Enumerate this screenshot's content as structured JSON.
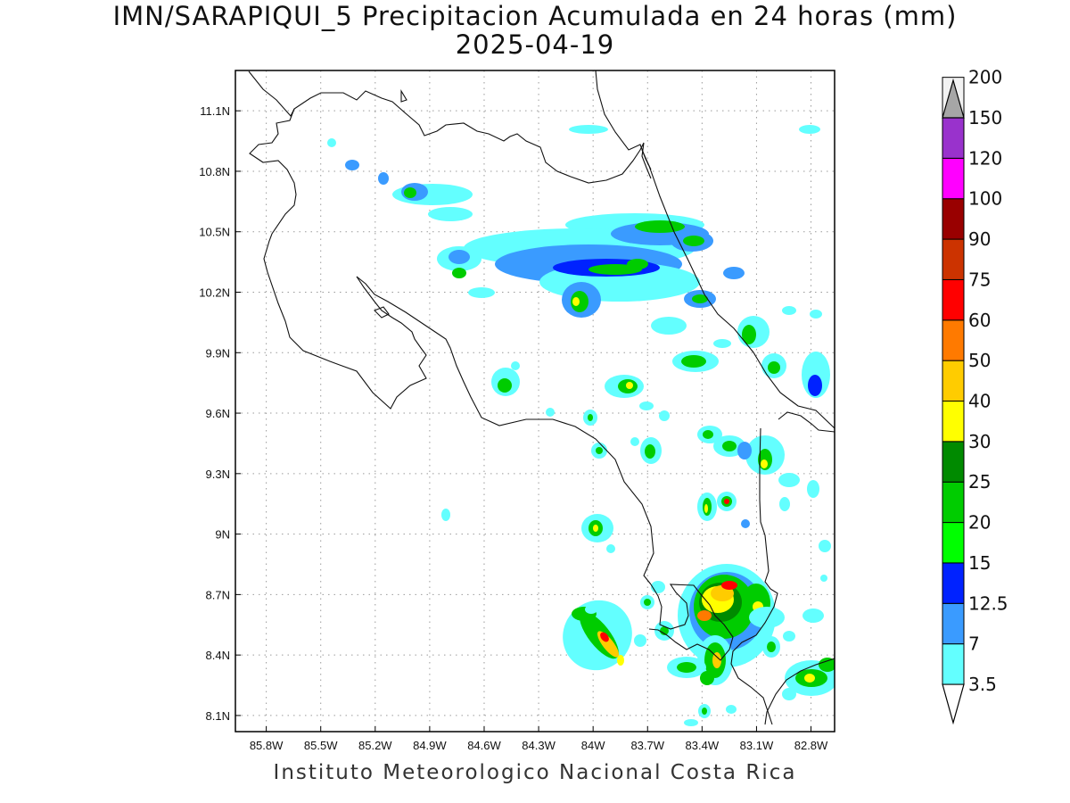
{
  "title": {
    "line1": "IMN/SARAPIQUI_5 Precipitacion Acumulada en 24 horas (mm)",
    "line2": "2025-04-19"
  },
  "footer": "Instituto Meteorologico Nacional Costa Rica",
  "map": {
    "lon_ticks": [
      "85.8W",
      "85.5W",
      "85.2W",
      "84.9W",
      "84.6W",
      "84.3W",
      "84W",
      "83.7W",
      "83.4W",
      "83.1W",
      "82.8W"
    ],
    "lat_ticks": [
      "11.1N",
      "10.8N",
      "10.5N",
      "10.2N",
      "9.9N",
      "9.6N",
      "9.3N",
      "9N",
      "8.7N",
      "8.4N",
      "8.1N"
    ],
    "lon_range": [
      -85.97,
      -82.67
    ],
    "lat_range": [
      8.02,
      11.3
    ],
    "grid": true
  },
  "colorbar": {
    "labels": [
      "3.5",
      "7",
      "12.5",
      "15",
      "20",
      "25",
      "30",
      "40",
      "50",
      "60",
      "75",
      "90",
      "100",
      "120",
      "150",
      "200"
    ],
    "colors": [
      "#63ffff",
      "#3a9bff",
      "#0022ff",
      "#00ff00",
      "#00cc00",
      "#008a00",
      "#ffff00",
      "#ffcc00",
      "#ff7a00",
      "#ff0000",
      "#cc3300",
      "#990000",
      "#ff00ff",
      "#9932cc",
      "#f2f2f2",
      "#a6a6a6"
    ]
  }
}
